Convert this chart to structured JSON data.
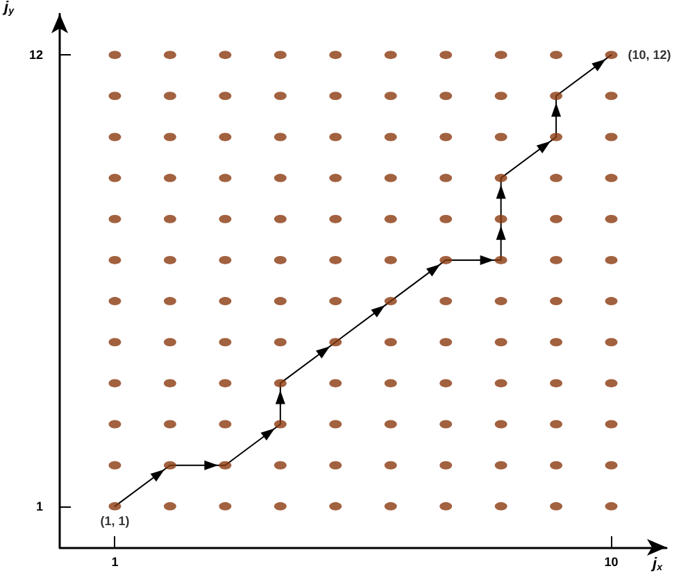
{
  "chart_data": {
    "type": "scatter",
    "xlabel": "j$_{x}$",
    "ylabel": "j$_{y}$",
    "series": [
      {
        "color": "#8b3a0f",
        "marker": "circle",
        "x": [
          1,
          2,
          3,
          4,
          5,
          6,
          7,
          8,
          9,
          10,
          1,
          2,
          3,
          4,
          5,
          6,
          7,
          8,
          9,
          10,
          1,
          2,
          3,
          4,
          5,
          6,
          7,
          8,
          9,
          10,
          1,
          2,
          3,
          4,
          5,
          6,
          7,
          8,
          9,
          10,
          1,
          2,
          3,
          4,
          5,
          6,
          7,
          8,
          9,
          10,
          1,
          2,
          3,
          4,
          5,
          6,
          7,
          8,
          9,
          10,
          1,
          2,
          3,
          4,
          5,
          6,
          7,
          8,
          9,
          10,
          1,
          2,
          3,
          4,
          5,
          6,
          7,
          8,
          9,
          10,
          1,
          2,
          3,
          4,
          5,
          6,
          7,
          8,
          9,
          10,
          1,
          2,
          3,
          4,
          5,
          6,
          7,
          8,
          9,
          10,
          1,
          2,
          3,
          4,
          5,
          6,
          7,
          8,
          9,
          10,
          1,
          2,
          3,
          4,
          5,
          6,
          7,
          8,
          9,
          10
        ],
        "values": [
          1,
          1,
          1,
          1,
          1,
          1,
          1,
          1,
          1,
          1,
          2,
          2,
          2,
          2,
          2,
          2,
          2,
          2,
          2,
          2,
          3,
          3,
          3,
          3,
          3,
          3,
          3,
          3,
          3,
          3,
          4,
          4,
          4,
          4,
          4,
          4,
          4,
          4,
          4,
          4,
          5,
          5,
          5,
          5,
          5,
          5,
          5,
          5,
          5,
          5,
          6,
          6,
          6,
          6,
          6,
          6,
          6,
          6,
          6,
          6,
          7,
          7,
          7,
          7,
          7,
          7,
          7,
          7,
          7,
          7,
          8,
          8,
          8,
          8,
          8,
          8,
          8,
          8,
          8,
          8,
          9,
          9,
          9,
          9,
          9,
          9,
          9,
          9,
          9,
          9,
          10,
          10,
          10,
          10,
          10,
          10,
          10,
          10,
          10,
          10,
          11,
          11,
          11,
          11,
          11,
          11,
          11,
          11,
          11,
          11,
          12,
          12,
          12,
          12,
          12,
          12,
          12,
          12,
          12,
          12
        ]
      },
      {
        "type": "line",
        "color": "#000000",
        "marker": "none",
        "x": [
          1,
          2,
          3,
          4,
          4,
          5,
          6,
          7,
          8,
          8,
          8,
          9,
          9,
          10
        ],
        "values": [
          1,
          2,
          2,
          3,
          4,
          5,
          6,
          7,
          7,
          8,
          9,
          10,
          11,
          12
        ]
      }
    ],
    "xlim": [
      0,
      11
    ],
    "ylim": [
      0,
      13
    ],
    "xticks": [
      1,
      10
    ],
    "yticks": [
      1,
      12
    ],
    "grid": false,
    "annotations": [
      {
        "text": "(1, 1)",
        "x": 1,
        "y": 1
      },
      {
        "text": "(10, 12)",
        "x": 10,
        "y": 12
      }
    ]
  }
}
